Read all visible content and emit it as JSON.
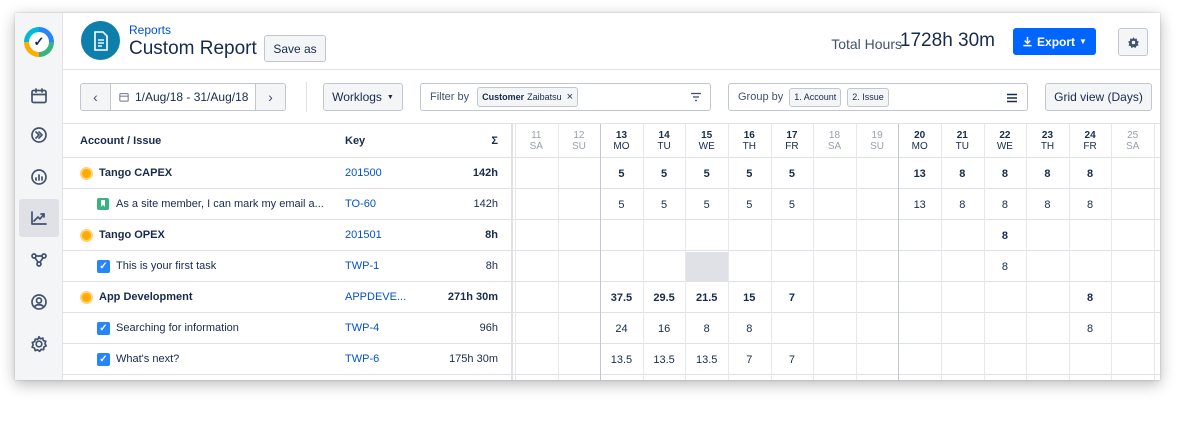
{
  "header": {
    "breadcrumb": "Reports",
    "title": "Custom Report",
    "save_as": "Save as",
    "total_hours_label": "Total Hours",
    "total_hours_value": "1728h 30m",
    "export_label": "Export"
  },
  "toolbar": {
    "date_range": "1/Aug/18 - 31/Aug/18",
    "worklogs": "Worklogs",
    "filter_label": "Filter by",
    "filter_chip_key": "Customer",
    "filter_chip_value": "Zaibatsu",
    "group_label": "Group by",
    "group_chips": [
      "1. Account",
      "2. Issue"
    ],
    "grid_view": "Grid view (Days)"
  },
  "table": {
    "headers": {
      "account": "Account / Issue",
      "key": "Key",
      "sum": "Σ"
    },
    "days": [
      {
        "num": "11",
        "dow": "SA",
        "weekend": true
      },
      {
        "num": "12",
        "dow": "SU",
        "weekend": true
      },
      {
        "num": "13",
        "dow": "MO",
        "weekend": false
      },
      {
        "num": "14",
        "dow": "TU",
        "weekend": false
      },
      {
        "num": "15",
        "dow": "WE",
        "weekend": false
      },
      {
        "num": "16",
        "dow": "TH",
        "weekend": false
      },
      {
        "num": "17",
        "dow": "FR",
        "weekend": false
      },
      {
        "num": "18",
        "dow": "SA",
        "weekend": true
      },
      {
        "num": "19",
        "dow": "SU",
        "weekend": true
      },
      {
        "num": "20",
        "dow": "MO",
        "weekend": false
      },
      {
        "num": "21",
        "dow": "TU",
        "weekend": false
      },
      {
        "num": "22",
        "dow": "WE",
        "weekend": false
      },
      {
        "num": "23",
        "dow": "TH",
        "weekend": false
      },
      {
        "num": "24",
        "dow": "FR",
        "weekend": false
      },
      {
        "num": "25",
        "dow": "SA",
        "weekend": true
      }
    ],
    "rows": [
      {
        "type": "account",
        "name": "Tango CAPEX",
        "key": "201500",
        "sum": "142h",
        "values": [
          "",
          "",
          "5",
          "5",
          "5",
          "5",
          "5",
          "",
          "",
          "13",
          "8",
          "8",
          "8",
          "8",
          ""
        ]
      },
      {
        "type": "story",
        "name": "As a site member, I can mark my email a...",
        "key": "TO-60",
        "sum": "142h",
        "values": [
          "",
          "",
          "5",
          "5",
          "5",
          "5",
          "5",
          "",
          "",
          "13",
          "8",
          "8",
          "8",
          "8",
          ""
        ]
      },
      {
        "type": "account",
        "name": "Tango OPEX",
        "key": "201501",
        "sum": "8h",
        "values": [
          "",
          "",
          "",
          "",
          "",
          "",
          "",
          "",
          "",
          "",
          "",
          "8",
          "",
          "",
          ""
        ]
      },
      {
        "type": "task",
        "name": "This is your first task",
        "key": "TWP-1",
        "sum": "8h",
        "values": [
          "",
          "",
          "",
          "",
          "",
          "",
          "",
          "",
          "",
          "",
          "",
          "8",
          "",
          "",
          ""
        ]
      },
      {
        "type": "account",
        "name": "App Development",
        "key": "APPDEVE...",
        "sum": "271h 30m",
        "values": [
          "",
          "",
          "37.5",
          "29.5",
          "21.5",
          "15",
          "7",
          "",
          "",
          "",
          "",
          "",
          "",
          "8",
          ""
        ]
      },
      {
        "type": "task",
        "name": "Searching for information",
        "key": "TWP-4",
        "sum": "96h",
        "values": [
          "",
          "",
          "24",
          "16",
          "8",
          "8",
          "",
          "",
          "",
          "",
          "",
          "",
          "",
          "8",
          ""
        ]
      },
      {
        "type": "task",
        "name": "What's next?",
        "key": "TWP-6",
        "sum": "175h 30m",
        "values": [
          "",
          "",
          "13.5",
          "13.5",
          "13.5",
          "7",
          "7",
          "",
          "",
          "",
          "",
          "",
          "",
          "",
          ""
        ]
      }
    ]
  },
  "colors": {
    "accent": "#0065ff",
    "brand": "#0e7eab",
    "account_dot": "#ffab00"
  },
  "icons": [
    "calendar-icon",
    "fast-forward-icon",
    "dashboard-icon",
    "reports-icon",
    "integrations-icon",
    "user-icon",
    "gear-icon"
  ]
}
